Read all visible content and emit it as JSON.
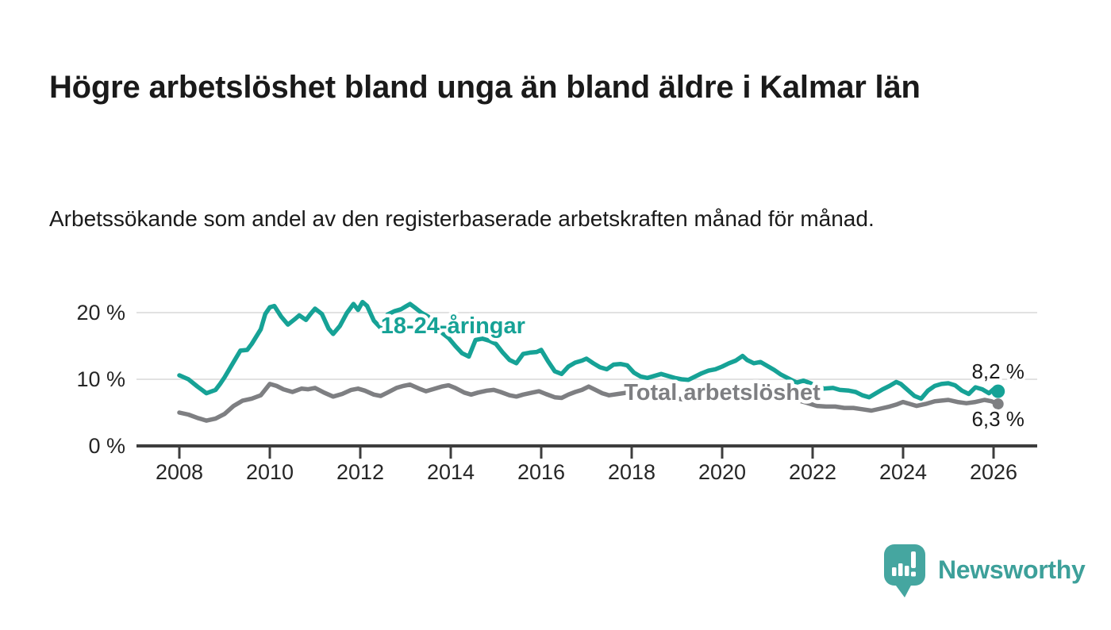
{
  "header": {
    "title": "Högre arbetslöshet bland unga än bland äldre i Kalmar län",
    "subtitle": "Arbetssökande som andel av den registerbaserade arbetskraften månad för månad."
  },
  "colors": {
    "accent_teal": "#16a296",
    "series_gray": "#7e7f82",
    "grid": "#d9d9d9",
    "axis": "#3d3d3d",
    "text": "#1a1a1a",
    "logo_teal": "#45a6a0",
    "brand_text": "#3da09a"
  },
  "chart_data": {
    "type": "line",
    "title": "Högre arbetslöshet bland unga än bland äldre i Kalmar län",
    "subtitle": "Arbetssökande som andel av den registerbaserade arbetskraften månad för månad.",
    "xlabel": "",
    "ylabel": "",
    "x_range": [
      2007.05,
      2026.95
    ],
    "ylim": [
      0,
      22.5
    ],
    "grid": "horizontal",
    "legend_position": "inline-labels",
    "x_axis": {
      "ticks": [
        "2008",
        "2010",
        "2012",
        "2014",
        "2016",
        "2018",
        "2020",
        "2022",
        "2024",
        "2026"
      ]
    },
    "y_axis": {
      "ticks": [
        {
          "v": 0,
          "label": "0 %"
        },
        {
          "v": 10,
          "label": "10 %"
        },
        {
          "v": 20,
          "label": "20 %"
        }
      ]
    },
    "series": [
      {
        "id": "youth",
        "name": "18-24-åringar",
        "color": "#16a296",
        "line_width": 5.5,
        "end_dot_r": 8.5,
        "end_label": "8,2 %",
        "end_value": 8.2,
        "label_anchor": {
          "x_year": 2014.05,
          "y_value": 18.1
        },
        "end_label_dy": -16,
        "points": [
          [
            2008.0,
            10.6
          ],
          [
            2008.2,
            10.0
          ],
          [
            2008.4,
            8.9
          ],
          [
            2008.6,
            7.9
          ],
          [
            2008.8,
            8.4
          ],
          [
            2008.9,
            9.3
          ],
          [
            2009.0,
            10.3
          ],
          [
            2009.2,
            12.6
          ],
          [
            2009.35,
            14.3
          ],
          [
            2009.5,
            14.4
          ],
          [
            2009.6,
            15.3
          ],
          [
            2009.8,
            17.5
          ],
          [
            2009.9,
            19.8
          ],
          [
            2010.0,
            20.8
          ],
          [
            2010.1,
            21.0
          ],
          [
            2010.25,
            19.4
          ],
          [
            2010.4,
            18.2
          ],
          [
            2010.55,
            19.0
          ],
          [
            2010.65,
            19.6
          ],
          [
            2010.8,
            18.9
          ],
          [
            2010.9,
            19.8
          ],
          [
            2011.0,
            20.6
          ],
          [
            2011.15,
            19.8
          ],
          [
            2011.3,
            17.6
          ],
          [
            2011.4,
            16.8
          ],
          [
            2011.55,
            18.0
          ],
          [
            2011.7,
            19.9
          ],
          [
            2011.85,
            21.3
          ],
          [
            2011.95,
            20.4
          ],
          [
            2012.05,
            21.6
          ],
          [
            2012.15,
            21.0
          ],
          [
            2012.3,
            18.8
          ],
          [
            2012.45,
            17.7
          ],
          [
            2012.6,
            19.7
          ],
          [
            2012.75,
            20.2
          ],
          [
            2012.9,
            20.5
          ],
          [
            2013.0,
            20.9
          ],
          [
            2013.1,
            21.3
          ],
          [
            2013.2,
            20.8
          ],
          [
            2013.35,
            20.0
          ],
          [
            2013.5,
            19.4
          ],
          [
            2013.65,
            18.3
          ],
          [
            2013.8,
            17.0
          ],
          [
            2013.95,
            16.2
          ],
          [
            2014.1,
            15.0
          ],
          [
            2014.25,
            13.9
          ],
          [
            2014.4,
            13.4
          ],
          [
            2014.55,
            15.9
          ],
          [
            2014.7,
            16.1
          ],
          [
            2014.85,
            15.8
          ],
          [
            2015.0,
            15.3
          ],
          [
            2015.15,
            14.0
          ],
          [
            2015.3,
            12.9
          ],
          [
            2015.45,
            12.4
          ],
          [
            2015.6,
            13.8
          ],
          [
            2015.75,
            14.0
          ],
          [
            2015.9,
            14.1
          ],
          [
            2016.0,
            14.4
          ],
          [
            2016.15,
            12.7
          ],
          [
            2016.3,
            11.2
          ],
          [
            2016.45,
            10.8
          ],
          [
            2016.6,
            11.9
          ],
          [
            2016.75,
            12.5
          ],
          [
            2016.9,
            12.8
          ],
          [
            2017.0,
            13.1
          ],
          [
            2017.15,
            12.4
          ],
          [
            2017.3,
            11.8
          ],
          [
            2017.45,
            11.5
          ],
          [
            2017.6,
            12.2
          ],
          [
            2017.75,
            12.3
          ],
          [
            2017.9,
            12.1
          ],
          [
            2018.05,
            11.0
          ],
          [
            2018.2,
            10.4
          ],
          [
            2018.35,
            10.2
          ],
          [
            2018.5,
            10.5
          ],
          [
            2018.65,
            10.8
          ],
          [
            2018.8,
            10.5
          ],
          [
            2018.95,
            10.2
          ],
          [
            2019.1,
            10.0
          ],
          [
            2019.25,
            9.9
          ],
          [
            2019.4,
            10.4
          ],
          [
            2019.55,
            10.9
          ],
          [
            2019.7,
            11.3
          ],
          [
            2019.85,
            11.5
          ],
          [
            2020.0,
            11.9
          ],
          [
            2020.15,
            12.4
          ],
          [
            2020.3,
            12.8
          ],
          [
            2020.45,
            13.5
          ],
          [
            2020.55,
            12.9
          ],
          [
            2020.7,
            12.4
          ],
          [
            2020.85,
            12.6
          ],
          [
            2021.0,
            12.0
          ],
          [
            2021.15,
            11.4
          ],
          [
            2021.3,
            10.7
          ],
          [
            2021.5,
            10.0
          ],
          [
            2021.65,
            9.5
          ],
          [
            2021.8,
            9.8
          ],
          [
            2021.95,
            9.4
          ],
          [
            2022.1,
            8.9
          ],
          [
            2022.25,
            8.6
          ],
          [
            2022.45,
            8.7
          ],
          [
            2022.6,
            8.4
          ],
          [
            2022.8,
            8.3
          ],
          [
            2022.95,
            8.1
          ],
          [
            2023.1,
            7.6
          ],
          [
            2023.25,
            7.3
          ],
          [
            2023.4,
            7.9
          ],
          [
            2023.55,
            8.5
          ],
          [
            2023.7,
            9.0
          ],
          [
            2023.85,
            9.6
          ],
          [
            2023.95,
            9.3
          ],
          [
            2024.1,
            8.4
          ],
          [
            2024.25,
            7.5
          ],
          [
            2024.4,
            7.1
          ],
          [
            2024.55,
            8.3
          ],
          [
            2024.7,
            9.0
          ],
          [
            2024.85,
            9.3
          ],
          [
            2025.0,
            9.4
          ],
          [
            2025.15,
            9.1
          ],
          [
            2025.3,
            8.3
          ],
          [
            2025.45,
            7.8
          ],
          [
            2025.6,
            8.8
          ],
          [
            2025.75,
            8.5
          ],
          [
            2025.9,
            7.9
          ],
          [
            2026.0,
            8.5
          ],
          [
            2026.1,
            8.2
          ]
        ]
      },
      {
        "id": "total",
        "name": "Total arbetslöshet",
        "color": "#7e7f82",
        "line_width": 5.5,
        "end_dot_r": 7,
        "end_label": "6,3 %",
        "end_value": 6.3,
        "label_anchor": {
          "x_year": 2020.0,
          "y_value": 8.1
        },
        "end_label_dy": 28,
        "points": [
          [
            2008.0,
            5.0
          ],
          [
            2008.2,
            4.7
          ],
          [
            2008.4,
            4.2
          ],
          [
            2008.6,
            3.8
          ],
          [
            2008.8,
            4.1
          ],
          [
            2009.0,
            4.8
          ],
          [
            2009.2,
            6.0
          ],
          [
            2009.4,
            6.8
          ],
          [
            2009.6,
            7.1
          ],
          [
            2009.8,
            7.6
          ],
          [
            2010.0,
            9.3
          ],
          [
            2010.15,
            9.0
          ],
          [
            2010.3,
            8.5
          ],
          [
            2010.5,
            8.1
          ],
          [
            2010.7,
            8.6
          ],
          [
            2010.85,
            8.5
          ],
          [
            2011.0,
            8.7
          ],
          [
            2011.2,
            8.0
          ],
          [
            2011.4,
            7.4
          ],
          [
            2011.6,
            7.8
          ],
          [
            2011.8,
            8.4
          ],
          [
            2011.95,
            8.6
          ],
          [
            2012.1,
            8.3
          ],
          [
            2012.3,
            7.7
          ],
          [
            2012.45,
            7.5
          ],
          [
            2012.6,
            8.0
          ],
          [
            2012.8,
            8.7
          ],
          [
            2012.95,
            9.0
          ],
          [
            2013.1,
            9.2
          ],
          [
            2013.3,
            8.6
          ],
          [
            2013.45,
            8.2
          ],
          [
            2013.6,
            8.5
          ],
          [
            2013.8,
            8.9
          ],
          [
            2013.95,
            9.1
          ],
          [
            2014.1,
            8.7
          ],
          [
            2014.3,
            8.0
          ],
          [
            2014.45,
            7.7
          ],
          [
            2014.6,
            8.0
          ],
          [
            2014.8,
            8.3
          ],
          [
            2014.95,
            8.4
          ],
          [
            2015.1,
            8.1
          ],
          [
            2015.3,
            7.6
          ],
          [
            2015.45,
            7.4
          ],
          [
            2015.6,
            7.7
          ],
          [
            2015.8,
            8.0
          ],
          [
            2015.95,
            8.2
          ],
          [
            2016.1,
            7.8
          ],
          [
            2016.3,
            7.3
          ],
          [
            2016.45,
            7.2
          ],
          [
            2016.6,
            7.7
          ],
          [
            2016.75,
            8.1
          ],
          [
            2016.9,
            8.4
          ],
          [
            2017.05,
            8.9
          ],
          [
            2017.2,
            8.4
          ],
          [
            2017.35,
            7.9
          ],
          [
            2017.5,
            7.6
          ],
          [
            2017.7,
            7.8
          ],
          [
            2017.9,
            8.0
          ],
          [
            2018.1,
            7.5
          ],
          [
            2018.3,
            7.1
          ],
          [
            2018.5,
            6.9
          ],
          [
            2018.7,
            7.2
          ],
          [
            2018.9,
            7.3
          ],
          [
            2019.1,
            7.0
          ],
          [
            2019.3,
            6.8
          ],
          [
            2019.5,
            6.9
          ],
          [
            2019.7,
            7.1
          ],
          [
            2019.9,
            7.3
          ],
          [
            2020.1,
            7.6
          ],
          [
            2020.3,
            8.2
          ],
          [
            2020.5,
            8.6
          ],
          [
            2020.7,
            8.4
          ],
          [
            2020.9,
            8.3
          ],
          [
            2021.1,
            8.0
          ],
          [
            2021.3,
            7.6
          ],
          [
            2021.5,
            7.2
          ],
          [
            2021.7,
            6.8
          ],
          [
            2021.9,
            6.4
          ],
          [
            2022.1,
            6.0
          ],
          [
            2022.3,
            5.9
          ],
          [
            2022.5,
            5.9
          ],
          [
            2022.7,
            5.7
          ],
          [
            2022.9,
            5.7
          ],
          [
            2023.1,
            5.5
          ],
          [
            2023.3,
            5.3
          ],
          [
            2023.5,
            5.6
          ],
          [
            2023.7,
            5.9
          ],
          [
            2023.85,
            6.2
          ],
          [
            2024.0,
            6.6
          ],
          [
            2024.15,
            6.3
          ],
          [
            2024.3,
            6.0
          ],
          [
            2024.5,
            6.3
          ],
          [
            2024.7,
            6.7
          ],
          [
            2024.85,
            6.8
          ],
          [
            2025.0,
            6.9
          ],
          [
            2025.2,
            6.6
          ],
          [
            2025.4,
            6.4
          ],
          [
            2025.6,
            6.6
          ],
          [
            2025.8,
            6.9
          ],
          [
            2025.95,
            6.7
          ],
          [
            2026.1,
            6.3
          ]
        ]
      }
    ]
  },
  "footer": {
    "brand": "Newsworthy"
  }
}
